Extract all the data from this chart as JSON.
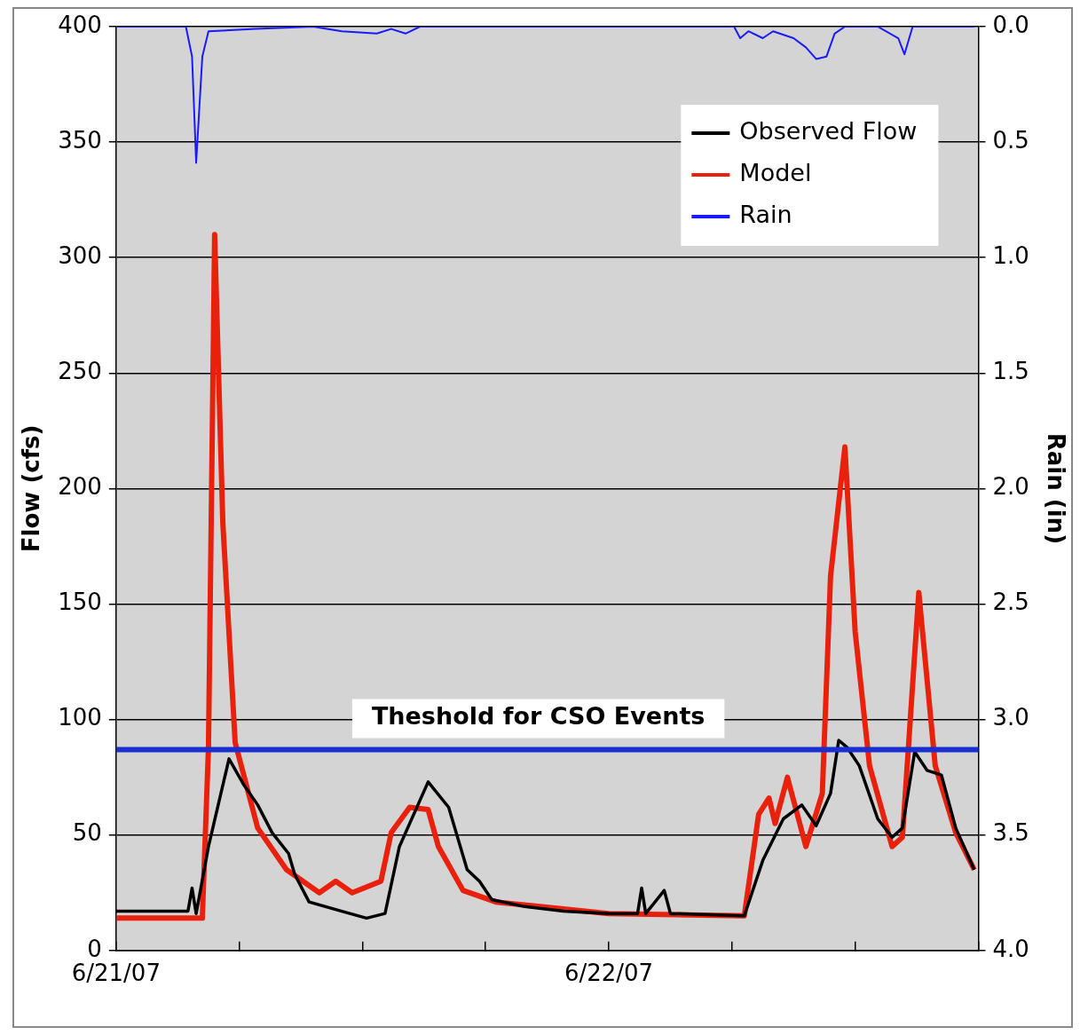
{
  "chart_data": {
    "type": "line",
    "ylabel": "Flow (cfs)",
    "y2label": "Rain (in)",
    "xlim": [
      "--06-21T00:00",
      "--06-22T18:00"
    ],
    "xticks": [
      {
        "value": "--06-21T00:00",
        "label": "6/21/07"
      },
      {
        "value": "--06-21T06:00",
        "label": null
      },
      {
        "value": "--06-21T12:00",
        "label": null
      },
      {
        "value": "--06-21T18:00",
        "label": null
      },
      {
        "value": "--06-22T00:00",
        "label": "6/22/07"
      },
      {
        "value": "--06-22T06:00",
        "label": null
      },
      {
        "value": "--06-22T12:00",
        "label": null
      },
      {
        "value": "--06-22T18:00",
        "label": null
      }
    ],
    "ylim": [
      0,
      400
    ],
    "yticks": [
      0,
      50,
      100,
      150,
      200,
      250,
      300,
      350,
      400
    ],
    "y2lim": [
      4,
      0
    ],
    "y2ticks": [
      {
        "value": 0,
        "label": "0.0"
      },
      {
        "value": 0.5,
        "label": "0.5"
      },
      {
        "value": 1,
        "label": "1.0"
      },
      {
        "value": 1.5,
        "label": "1.5"
      },
      {
        "value": 2,
        "label": "2.0"
      },
      {
        "value": 2.5,
        "label": "2.5"
      },
      {
        "value": 3,
        "label": "3.0"
      },
      {
        "value": 3.5,
        "label": "3.5"
      },
      {
        "value": 4,
        "label": "4.0"
      }
    ],
    "grid": "y",
    "legend": "top right",
    "marker": "none",
    "ref_lines": [
      {
        "axis": "y",
        "value": 87,
        "label": "Theshold for CSO Events",
        "color": "#1a2fd0"
      }
    ],
    "series": [
      {
        "name": "Observed Flow",
        "color": "#000000",
        "x": [
          "--06-21T00:00",
          "--06-21T02:12",
          "--06-21T03:30",
          "--06-21T03:42",
          "--06-21T03:54",
          "--06-21T04:30",
          "--06-21T05:30",
          "--06-21T06:12",
          "--06-21T06:54",
          "--06-21T07:36",
          "--06-21T08:24",
          "--06-21T08:42",
          "--06-21T09:24",
          "--06-21T11:00",
          "--06-21T12:12",
          "--06-21T13:06",
          "--06-21T13:48",
          "--06-21T15:12",
          "--06-21T16:12",
          "--06-21T17:06",
          "--06-21T17:42",
          "--06-21T18:18",
          "--06-21T19:54",
          "--06-21T21:48",
          "--06-22T00:00",
          "--06-22T01:24",
          "--06-22T01:36",
          "--06-22T01:48",
          "--06-22T02:42",
          "--06-22T03:00",
          "--06-22T06:36",
          "--06-22T07:30",
          "--06-22T08:30",
          "--06-22T09:24",
          "--06-22T10:06",
          "--06-22T10:48",
          "--06-22T11:12",
          "--06-22T11:36",
          "--06-22T12:12",
          "--06-22T13:06",
          "--06-22T13:48",
          "--06-22T14:18",
          "--06-22T14:54",
          "--06-22T15:30",
          "--06-22T16:12",
          "--06-22T16:54",
          "--06-22T17:48"
        ],
        "values": [
          17,
          17,
          17,
          27,
          16,
          45,
          83,
          72,
          63,
          51,
          42,
          33,
          21,
          17,
          14,
          16,
          45,
          73,
          62,
          35,
          30,
          22,
          19,
          17,
          16,
          16,
          27,
          16,
          26,
          16,
          15,
          39,
          57,
          63,
          54,
          68,
          91,
          88,
          80,
          57,
          49,
          53,
          86,
          78,
          76,
          53,
          35
        ]
      },
      {
        "name": "Model",
        "color": "#e8200c",
        "x": [
          "--06-21T00:00",
          "--06-21T04:12",
          "--06-21T04:30",
          "--06-21T04:48",
          "--06-21T05:12",
          "--06-21T05:48",
          "--06-21T06:54",
          "--06-21T08:18",
          "--06-21T09:54",
          "--06-21T10:42",
          "--06-21T11:30",
          "--06-21T12:54",
          "--06-21T13:24",
          "--06-21T14:18",
          "--06-21T15:12",
          "--06-21T15:42",
          "--06-21T16:54",
          "--06-21T18:30",
          "--06-21T21:48",
          "--06-22T00:00",
          "--06-22T06:36",
          "--06-22T07:18",
          "--06-22T07:48",
          "--06-22T08:06",
          "--06-22T08:42",
          "--06-22T09:36",
          "--06-22T10:24",
          "--06-22T10:48",
          "--06-22T11:30",
          "--06-22T12:00",
          "--06-22T12:42",
          "--06-22T13:48",
          "--06-22T14:18",
          "--06-22T15:06",
          "--06-22T15:54",
          "--06-22T16:54",
          "--06-22T17:48"
        ],
        "values": [
          14,
          14,
          88,
          310,
          185,
          90,
          53,
          35,
          25,
          30,
          25,
          30,
          51,
          62,
          61,
          45,
          26,
          21,
          18,
          16,
          15,
          59,
          66,
          55,
          75,
          45,
          68,
          162,
          218,
          138,
          80,
          45,
          49,
          155,
          80,
          51,
          35
        ]
      },
      {
        "name": "Rain",
        "color": "#1a1aff",
        "axis": "y2",
        "x": [
          "--06-21T00:00",
          "--06-21T03:24",
          "--06-21T03:42",
          "--06-21T03:54",
          "--06-21T04:12",
          "--06-21T04:30",
          "--06-21T06:48",
          "--06-21T09:36",
          "--06-21T11:00",
          "--06-21T12:42",
          "--06-21T13:24",
          "--06-21T14:06",
          "--06-21T14:48",
          "--06-22T06:06",
          "--06-22T06:24",
          "--06-22T06:48",
          "--06-22T07:30",
          "--06-22T08:00",
          "--06-22T09:00",
          "--06-22T09:36",
          "--06-22T10:06",
          "--06-22T10:36",
          "--06-22T11:00",
          "--06-22T11:30",
          "--06-22T13:06",
          "--06-22T14:06",
          "--06-22T14:24",
          "--06-22T14:48",
          "--06-22T17:48"
        ],
        "values": [
          0,
          0,
          0.13,
          0.59,
          0.13,
          0.02,
          0.01,
          0,
          0.02,
          0.03,
          0.01,
          0.03,
          0,
          0,
          0.05,
          0.02,
          0.05,
          0.02,
          0.05,
          0.09,
          0.14,
          0.13,
          0.03,
          0,
          0,
          0.05,
          0.12,
          0,
          0
        ]
      }
    ]
  }
}
